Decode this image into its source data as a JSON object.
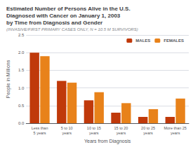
{
  "chart_data": {
    "type": "bar",
    "title": "Estimated Number of Persons Alive in the U.S.\nDiagnosed with Cancer on January 1, 2003\nby Time from Diagnosis and Gender",
    "subtitle": "(INVASIVE/FIRST PRIMARY CASES ONLY, N = 10.5 M SURVIVORS)",
    "xlabel": "Years from Diagnosis",
    "ylabel": "People in Millions",
    "categories": [
      "Less than\n5 years",
      "5 to 10\nyears",
      "10 to 15\nyears",
      "15 to 20\nyears",
      "20 to 25\nyears",
      "More than 25\nyears"
    ],
    "series": [
      {
        "name": "MALES",
        "color": "#c0390a",
        "values": [
          2.0,
          1.2,
          0.65,
          0.3,
          0.18,
          0.18
        ]
      },
      {
        "name": "FEMALES",
        "color": "#e8821a",
        "values": [
          1.9,
          1.15,
          0.88,
          0.57,
          0.4,
          0.7
        ]
      }
    ],
    "ylim": [
      0,
      2.5
    ],
    "yticks": [
      {
        "value": 0,
        "label": "0.0"
      },
      0.5,
      {
        "value": 1,
        "label": "1.0"
      },
      1.5,
      {
        "value": 2,
        "label": "2.0"
      },
      2.5
    ],
    "grid": true,
    "legend": "upper right"
  }
}
